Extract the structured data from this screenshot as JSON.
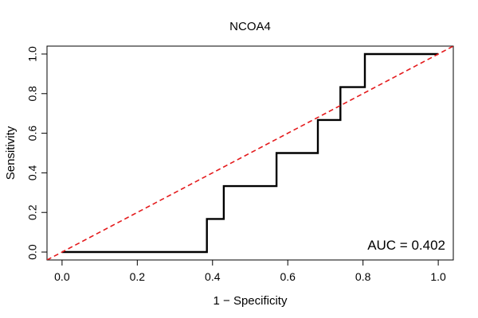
{
  "chart_data": {
    "type": "line",
    "title": "NCOA4",
    "xlabel": "1 − Specificity",
    "ylabel": "Sensitivity",
    "xlim": [
      -0.04,
      1.04
    ],
    "ylim": [
      -0.04,
      1.04
    ],
    "xticks": [
      0.0,
      0.2,
      0.4,
      0.6,
      0.8,
      1.0
    ],
    "xtick_labels": [
      "0.0",
      "0.2",
      "0.4",
      "0.6",
      "0.8",
      "1.0"
    ],
    "yticks": [
      0.0,
      0.2,
      0.4,
      0.6,
      0.8,
      1.0
    ],
    "ytick_labels": [
      "0.0",
      "0.2",
      "0.4",
      "0.6",
      "0.8",
      "1.0"
    ],
    "grid": false,
    "series": [
      {
        "name": "ROC",
        "style": "step",
        "color": "#000000",
        "x": [
          0.0,
          0.385,
          0.385,
          0.43,
          0.43,
          0.57,
          0.57,
          0.68,
          0.68,
          0.74,
          0.74,
          0.805,
          0.805,
          1.0
        ],
        "y": [
          0.0,
          0.0,
          0.167,
          0.167,
          0.333,
          0.333,
          0.5,
          0.5,
          0.667,
          0.667,
          0.833,
          0.833,
          1.0,
          1.0
        ]
      },
      {
        "name": "reference",
        "style": "dashed",
        "color": "#e41a1c",
        "x": [
          -0.04,
          1.04
        ],
        "y": [
          -0.04,
          1.04
        ]
      }
    ],
    "annotations": [
      {
        "text": "AUC = 0.402",
        "position": "bottom-right"
      }
    ]
  }
}
